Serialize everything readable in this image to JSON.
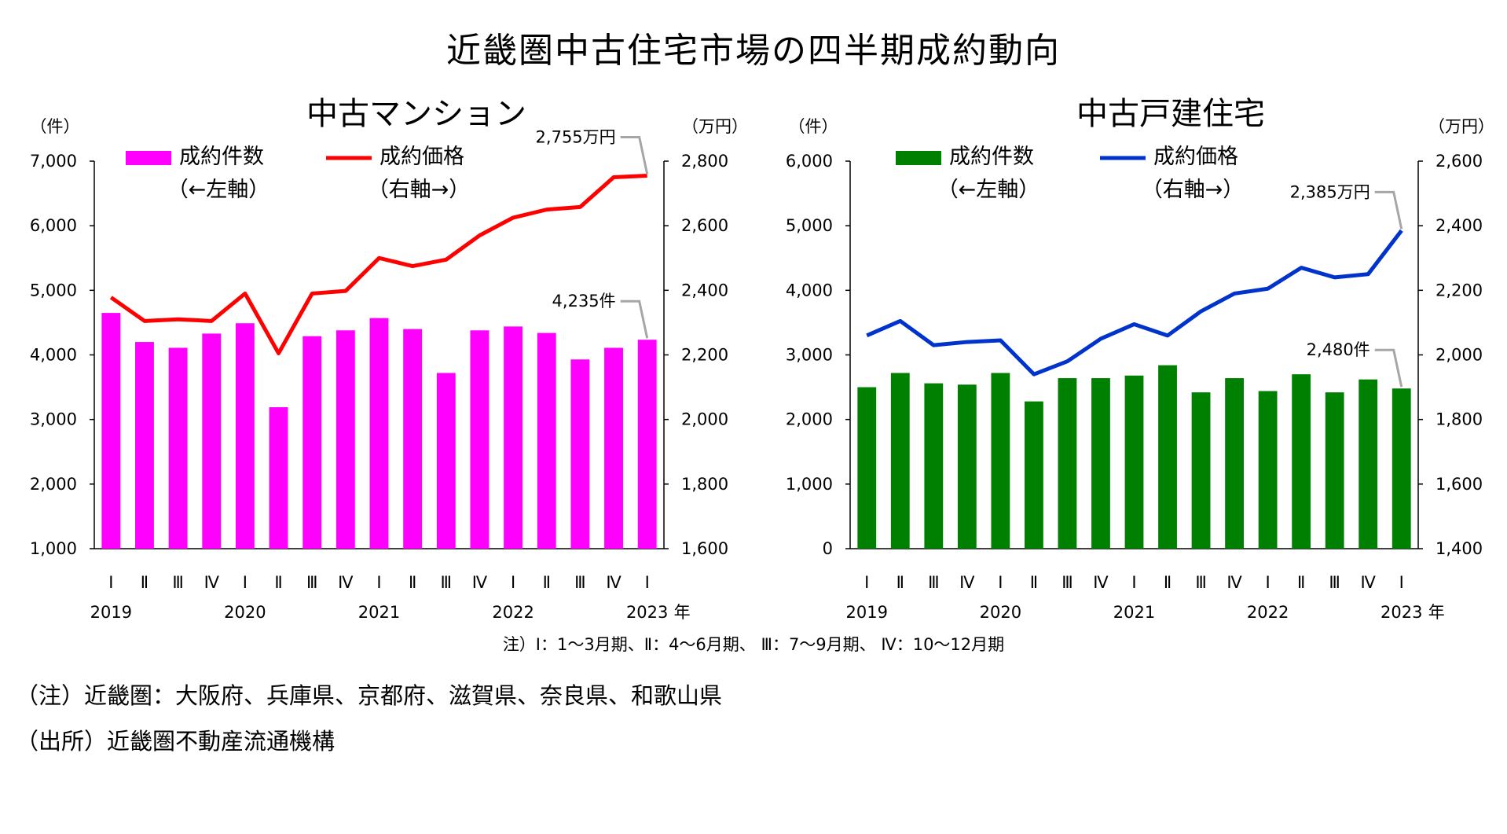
{
  "page": {
    "main_title": "近畿圏中古住宅市場の四半期成約動向",
    "quarter_note": "注）Ⅰ：1～3月期、Ⅱ：4～6月期、 Ⅲ：7～9月期、 Ⅳ：10～12月期",
    "note_region": "（注）近畿圏：大阪府、兵庫県、京都府、滋賀県、奈良県、和歌山県",
    "note_source": "（出所）近畿圏不動産流通機構"
  },
  "chart_data": [
    {
      "type": "bar",
      "title": "中古マンション",
      "categories": [
        "Ⅰ",
        "Ⅱ",
        "Ⅲ",
        "Ⅳ",
        "Ⅰ",
        "Ⅱ",
        "Ⅲ",
        "Ⅳ",
        "Ⅰ",
        "Ⅱ",
        "Ⅲ",
        "Ⅳ",
        "Ⅰ",
        "Ⅱ",
        "Ⅲ",
        "Ⅳ",
        "Ⅰ"
      ],
      "year_labels": [
        {
          "label": "2019",
          "index": 0
        },
        {
          "label": "2020",
          "index": 4
        },
        {
          "label": "2021",
          "index": 8
        },
        {
          "label": "2022",
          "index": 12
        },
        {
          "label": "2023",
          "index": 16
        }
      ],
      "year_suffix": "年",
      "left_unit": "（件）",
      "right_unit": "（万円）",
      "left_ylim": [
        1000,
        7000
      ],
      "left_ticks": [
        1000,
        2000,
        3000,
        4000,
        5000,
        6000,
        7000
      ],
      "left_tick_labels": [
        "1,000",
        "2,000",
        "3,000",
        "4,000",
        "5,000",
        "6,000",
        "7,000"
      ],
      "right_ylim": [
        1600,
        2800
      ],
      "right_ticks": [
        1600,
        1800,
        2000,
        2200,
        2400,
        2600,
        2800
      ],
      "right_tick_labels": [
        "1,600",
        "1,800",
        "2,000",
        "2,200",
        "2,400",
        "2,600",
        "2,800"
      ],
      "bar_color": "#ff00ff",
      "line_color": "#ff0000",
      "series": [
        {
          "name": "成約件数",
          "axis_note": "（←左軸）",
          "kind": "bar",
          "axis": "left",
          "values": [
            4650,
            4200,
            4110,
            4330,
            4490,
            3190,
            4290,
            4380,
            4570,
            4400,
            3720,
            4380,
            4440,
            4340,
            3930,
            4110,
            4235
          ]
        },
        {
          "name": "成約価格",
          "axis_note": "（右軸→）",
          "kind": "line",
          "axis": "right",
          "values": [
            2378,
            2305,
            2310,
            2305,
            2390,
            2205,
            2390,
            2398,
            2500,
            2475,
            2495,
            2570,
            2625,
            2650,
            2658,
            2750,
            2755
          ]
        }
      ],
      "annotations": [
        {
          "text": "2,755万円",
          "series": 1,
          "index": 16
        },
        {
          "text": "4,235件",
          "series": 0,
          "index": 16
        }
      ]
    },
    {
      "type": "bar",
      "title": "中古戸建住宅",
      "categories": [
        "Ⅰ",
        "Ⅱ",
        "Ⅲ",
        "Ⅳ",
        "Ⅰ",
        "Ⅱ",
        "Ⅲ",
        "Ⅳ",
        "Ⅰ",
        "Ⅱ",
        "Ⅲ",
        "Ⅳ",
        "Ⅰ",
        "Ⅱ",
        "Ⅲ",
        "Ⅳ",
        "Ⅰ"
      ],
      "year_labels": [
        {
          "label": "2019",
          "index": 0
        },
        {
          "label": "2020",
          "index": 4
        },
        {
          "label": "2021",
          "index": 8
        },
        {
          "label": "2022",
          "index": 12
        },
        {
          "label": "2023",
          "index": 16
        }
      ],
      "year_suffix": "年",
      "left_unit": "（件）",
      "right_unit": "（万円）",
      "left_ylim": [
        0,
        6000
      ],
      "left_ticks": [
        0,
        1000,
        2000,
        3000,
        4000,
        5000,
        6000
      ],
      "left_tick_labels": [
        "0",
        "1,000",
        "2,000",
        "3,000",
        "4,000",
        "5,000",
        "6,000"
      ],
      "right_ylim": [
        1400,
        2600
      ],
      "right_ticks": [
        1400,
        1600,
        1800,
        2000,
        2200,
        2400,
        2600
      ],
      "right_tick_labels": [
        "1,400",
        "1,600",
        "1,800",
        "2,000",
        "2,200",
        "2,400",
        "2,600"
      ],
      "bar_color": "#008000",
      "line_color": "#0033cc",
      "series": [
        {
          "name": "成約件数",
          "axis_note": "（←左軸）",
          "kind": "bar",
          "axis": "left",
          "values": [
            2500,
            2720,
            2560,
            2540,
            2720,
            2280,
            2640,
            2640,
            2680,
            2840,
            2420,
            2640,
            2440,
            2700,
            2420,
            2620,
            2480
          ]
        },
        {
          "name": "成約価格",
          "axis_note": "（右軸→）",
          "kind": "line",
          "axis": "right",
          "values": [
            2060,
            2105,
            2030,
            2040,
            2045,
            1940,
            1980,
            2050,
            2095,
            2060,
            2135,
            2190,
            2205,
            2270,
            2240,
            2250,
            2385
          ]
        }
      ],
      "annotations": [
        {
          "text": "2,385万円",
          "series": 1,
          "index": 16
        },
        {
          "text": "2,480件",
          "series": 0,
          "index": 16
        }
      ]
    }
  ]
}
